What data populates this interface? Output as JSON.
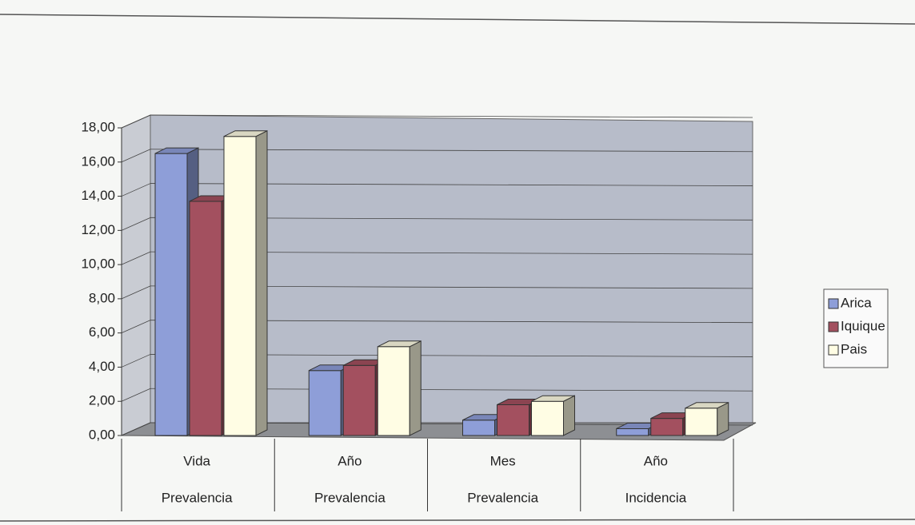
{
  "chart_data": {
    "type": "bar3d",
    "categories": [
      [
        "Vida",
        "Prevalencia"
      ],
      [
        "Año",
        "Prevalencia"
      ],
      [
        "Mes",
        "Prevalencia"
      ],
      [
        "Año",
        "Incidencia"
      ]
    ],
    "series": [
      {
        "name": "Arica",
        "color": "#8e9ed8",
        "values": [
          16.5,
          3.8,
          0.9,
          0.4
        ]
      },
      {
        "name": "Iquique",
        "color": "#a3505f",
        "values": [
          13.7,
          4.1,
          1.8,
          1.0
        ]
      },
      {
        "name": "Pais",
        "color": "#fffde4",
        "values": [
          17.5,
          5.2,
          2.0,
          1.6
        ]
      }
    ],
    "ylim": [
      0,
      18
    ],
    "yticks": [
      {
        "value": 0,
        "label": "0,00"
      },
      {
        "value": 2,
        "label": "2,00"
      },
      {
        "value": 4,
        "label": "4,00"
      },
      {
        "value": 6,
        "label": "6,00"
      },
      {
        "value": 8,
        "label": "8,00"
      },
      {
        "value": 10,
        "label": "10,00"
      },
      {
        "value": 12,
        "label": "12,00"
      },
      {
        "value": 14,
        "label": "14,00"
      },
      {
        "value": 16,
        "label": "16,00"
      },
      {
        "value": 18,
        "label": "18,00"
      }
    ],
    "grid": true,
    "legend": "right"
  }
}
